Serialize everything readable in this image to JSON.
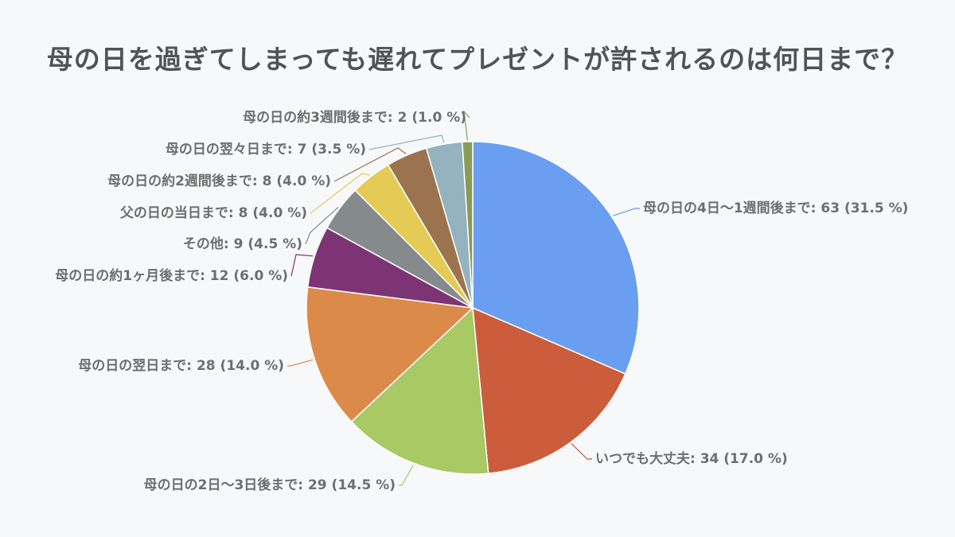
{
  "chart_data": {
    "type": "pie",
    "title": "母の日を過ぎてしまっても遅れてプレゼントが許されるのは何日まで？",
    "slices": [
      {
        "label": "母の日の4日〜1週間後まで",
        "value": 63,
        "percent": 31.5,
        "color": "#6a9ef0",
        "display": "母の日の4日〜1週間後まで: 63 (31.5 %)"
      },
      {
        "label": "いつでも大丈夫",
        "value": 34,
        "percent": 17.0,
        "color": "#cb5d3c",
        "display": "いつでも大丈夫: 34 (17.0 %)"
      },
      {
        "label": "母の日の2日〜3日後まで",
        "value": 29,
        "percent": 14.5,
        "color": "#a8c964",
        "display": "母の日の2日〜3日後まで: 29 (14.5 %)"
      },
      {
        "label": "母の日の翌日まで",
        "value": 28,
        "percent": 14.0,
        "color": "#dc8a4a",
        "display": "母の日の翌日まで: 28 (14.0 %)"
      },
      {
        "label": "母の日の約1ヶ月後まで",
        "value": 12,
        "percent": 6.0,
        "color": "#7d3474",
        "display": "母の日の約1ヶ月後まで: 12 (6.0 %)"
      },
      {
        "label": "その他",
        "value": 9,
        "percent": 4.5,
        "color": "#858a8d",
        "display": "その他: 9 (4.5 %)"
      },
      {
        "label": "父の日の当日まで",
        "value": 8,
        "percent": 4.0,
        "color": "#e4cb56",
        "display": "父の日の当日まで: 8 (4.0 %)"
      },
      {
        "label": "母の日の約2週間後まで",
        "value": 8,
        "percent": 4.0,
        "color": "#9b744f",
        "display": "母の日の約2週間後まで: 8 (4.0 %)"
      },
      {
        "label": "母の日の翌々日まで",
        "value": 7,
        "percent": 3.5,
        "color": "#95b3bf",
        "display": "母の日の翌々日まで: 7 (3.5 %)"
      },
      {
        "label": "母の日の約3週間後まで",
        "value": 2,
        "percent": 1.0,
        "color": "#8a9a58",
        "display": "母の日の約3週間後まで: 2 (1.0 %)"
      }
    ]
  }
}
